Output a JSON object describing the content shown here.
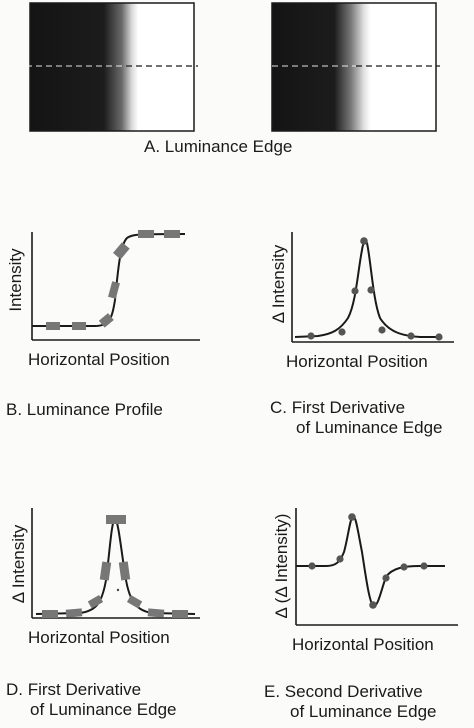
{
  "panel_a": {
    "caption": "A.  Luminance Edge"
  },
  "panel_b": {
    "caption": "B.  Luminance Profile",
    "xlabel": "Horizontal Position",
    "ylabel": "Intensity"
  },
  "panel_c": {
    "caption_line1": "C.  First Derivative",
    "caption_line2": "of Luminance Edge",
    "xlabel": "Horizontal Position",
    "ylabel": "Δ Intensity"
  },
  "panel_d": {
    "caption_line1": "D.  First Derivative",
    "caption_line2": "of Luminance Edge",
    "xlabel": "Horizontal Position",
    "ylabel": "Δ Intensity"
  },
  "panel_e": {
    "caption_line1": "E.  Second Derivative",
    "caption_line2": "of Luminance Edge",
    "xlabel": "Horizontal Position",
    "ylabel": "Δ (Δ Intensity)"
  }
}
